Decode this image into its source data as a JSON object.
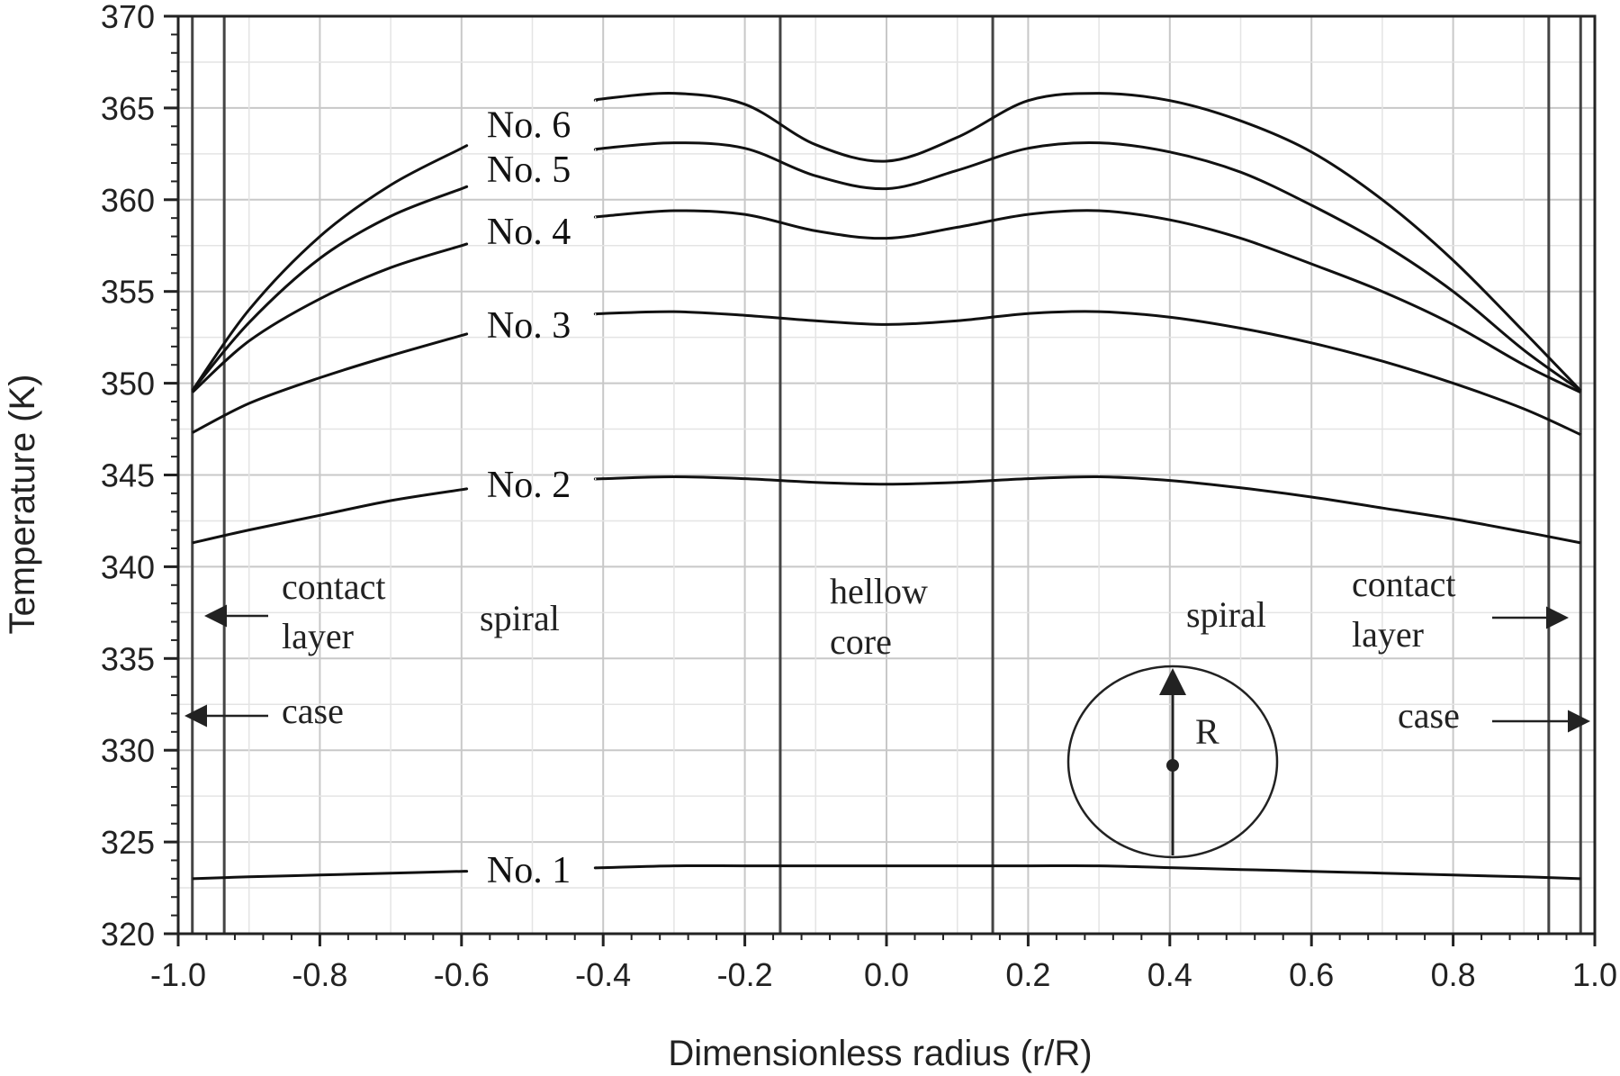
{
  "chart_data": {
    "type": "line",
    "xlabel": "Dimensionless radius (r/R)",
    "ylabel": "Temperature (K)",
    "xlim": [
      -1.0,
      1.0
    ],
    "ylim": [
      320,
      370
    ],
    "x_ticks": [
      "-1.0",
      "-0.8",
      "-0.6",
      "-0.4",
      "-0.2",
      "0.0",
      "0.2",
      "0.4",
      "0.6",
      "0.8",
      "1.0"
    ],
    "y_ticks": [
      "320",
      "325",
      "330",
      "335",
      "340",
      "345",
      "350",
      "355",
      "360",
      "365",
      "370"
    ],
    "grid": true,
    "region_boundaries": [
      -0.98,
      -0.935,
      -0.15,
      0.15,
      0.935,
      0.98
    ],
    "x": [
      -0.98,
      -0.9,
      -0.8,
      -0.7,
      -0.6,
      -0.5,
      -0.4,
      -0.3,
      -0.2,
      -0.1,
      0.0,
      0.1,
      0.2,
      0.3,
      0.4,
      0.5,
      0.6,
      0.7,
      0.8,
      0.9,
      0.98
    ],
    "series": [
      {
        "name": "No. 1",
        "values": [
          323.0,
          323.1,
          323.2,
          323.3,
          323.4,
          323.5,
          323.6,
          323.7,
          323.7,
          323.7,
          323.7,
          323.7,
          323.7,
          323.7,
          323.6,
          323.5,
          323.4,
          323.3,
          323.2,
          323.1,
          323.0
        ]
      },
      {
        "name": "No. 2",
        "values": [
          341.3,
          342.0,
          342.8,
          343.6,
          344.2,
          344.6,
          344.8,
          344.9,
          344.8,
          344.6,
          344.5,
          344.6,
          344.8,
          344.9,
          344.7,
          344.3,
          343.8,
          343.2,
          342.6,
          341.9,
          341.3
        ]
      },
      {
        "name": "No. 3",
        "values": [
          347.3,
          348.9,
          350.3,
          351.5,
          352.6,
          353.4,
          353.8,
          353.9,
          353.7,
          353.4,
          353.2,
          353.4,
          353.8,
          353.9,
          353.6,
          353.0,
          352.2,
          351.2,
          350.0,
          348.6,
          347.2
        ]
      },
      {
        "name": "No. 4",
        "values": [
          349.5,
          352.3,
          354.6,
          356.3,
          357.5,
          358.6,
          359.1,
          359.4,
          359.2,
          358.3,
          357.9,
          358.5,
          359.2,
          359.4,
          358.9,
          357.9,
          356.5,
          355.0,
          353.2,
          351.0,
          349.5
        ]
      },
      {
        "name": "No. 5",
        "values": [
          349.6,
          353.3,
          356.8,
          359.1,
          360.6,
          361.9,
          362.8,
          363.1,
          362.8,
          361.3,
          360.6,
          361.6,
          362.8,
          363.1,
          362.6,
          361.5,
          359.7,
          357.6,
          355.0,
          351.8,
          349.6
        ]
      },
      {
        "name": "No. 6",
        "values": [
          349.6,
          354.0,
          358.0,
          360.8,
          362.8,
          364.4,
          365.5,
          365.8,
          365.2,
          363.0,
          362.1,
          363.4,
          365.4,
          365.8,
          365.4,
          364.3,
          362.6,
          360.0,
          356.7,
          352.8,
          349.6
        ]
      }
    ],
    "annotations": {
      "contact_layer_left": [
        "contact",
        "layer"
      ],
      "case_left": "case",
      "spiral_left": "spiral",
      "core": [
        "hellow",
        "core"
      ],
      "spiral_right": "spiral",
      "contact_layer_right": [
        "contact",
        "layer"
      ],
      "case_right": "case",
      "inset_radius_label": "R"
    }
  }
}
